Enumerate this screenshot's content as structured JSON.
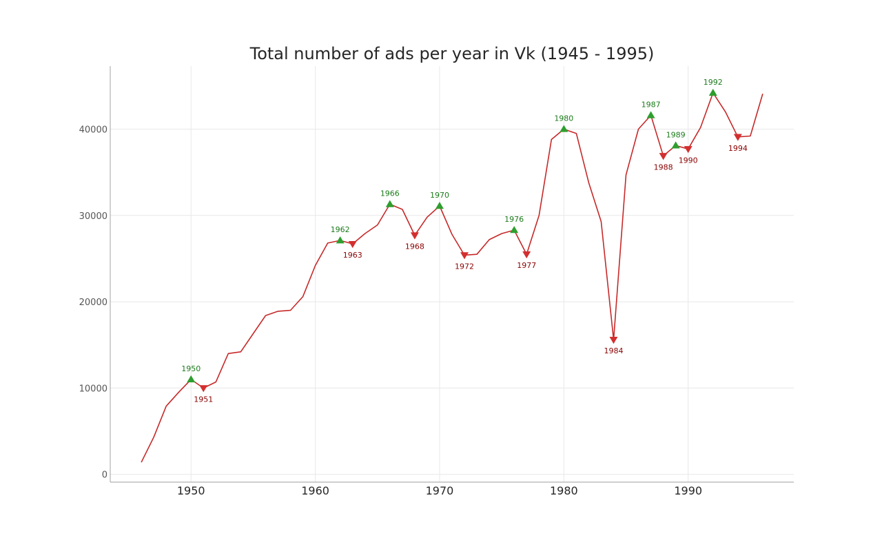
{
  "chart_data": {
    "type": "line",
    "title": "Total number of ads per year in Vk (1945 - 1995)",
    "xlabel": "",
    "ylabel": "",
    "xlim": [
      1943.5,
      1998.5
    ],
    "ylim": [
      -900,
      47300
    ],
    "xticks": [
      1950,
      1960,
      1970,
      1980,
      1990
    ],
    "yticks": [
      0,
      10000,
      20000,
      30000,
      40000
    ],
    "grid": true,
    "colors": {
      "line": "#c62828",
      "peak": "#2e9e2e",
      "peak_text": "#1a7a1a",
      "trough": "#d32f2f",
      "trough_text": "#8b0000",
      "grid": "#e8e8e8",
      "axis": "#b0b0b0"
    },
    "series": [
      {
        "x": [
          1946,
          1947,
          1948,
          1949,
          1950,
          1951,
          1952,
          1953,
          1954,
          1955,
          1956,
          1957,
          1958,
          1959,
          1960,
          1961,
          1962,
          1963,
          1964,
          1965,
          1966,
          1967,
          1968,
          1969,
          1970,
          1971,
          1972,
          1973,
          1974,
          1975,
          1976,
          1977,
          1978,
          1979,
          1980,
          1981,
          1982,
          1983,
          1984,
          1985,
          1986,
          1987,
          1988,
          1989,
          1990,
          1991,
          1992,
          1993,
          1994,
          1995,
          1996
        ],
        "y": [
          1400,
          4300,
          7900,
          9500,
          11000,
          10000,
          10700,
          14000,
          14200,
          16300,
          18400,
          18900,
          19000,
          20600,
          24200,
          26800,
          27100,
          26700,
          27900,
          28900,
          31300,
          30700,
          27700,
          29800,
          31100,
          27800,
          25400,
          25500,
          27200,
          27900,
          28300,
          25500,
          30000,
          38800,
          40000,
          39500,
          33800,
          29300,
          15600,
          34700,
          40000,
          41600,
          36900,
          38100,
          37700,
          40200,
          44200,
          42000,
          39100,
          39200,
          44100
        ]
      }
    ],
    "peaks": [
      1950,
      1962,
      1966,
      1970,
      1976,
      1980,
      1987,
      1989,
      1992
    ],
    "troughs": [
      1951,
      1963,
      1968,
      1972,
      1977,
      1984,
      1988,
      1990,
      1994
    ]
  }
}
